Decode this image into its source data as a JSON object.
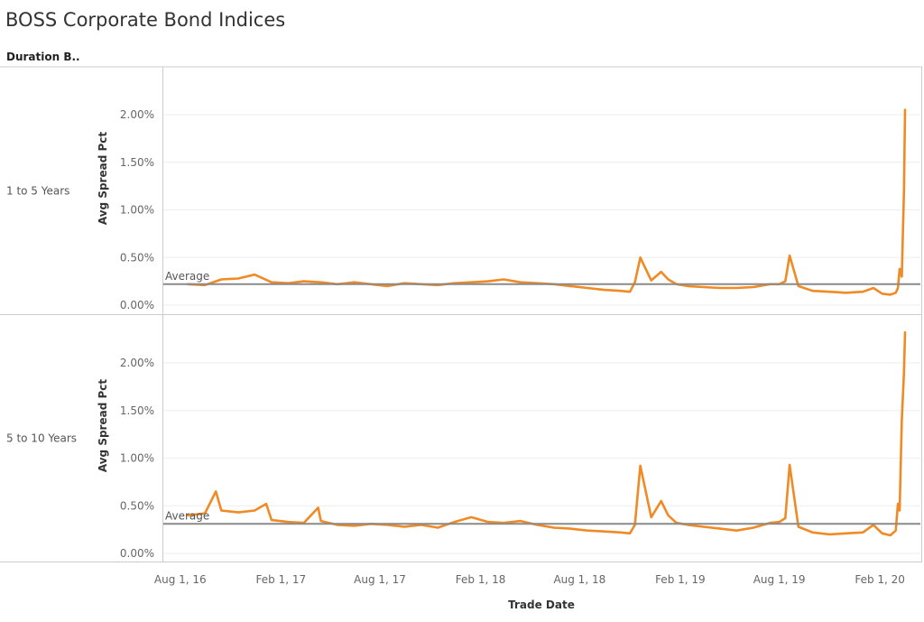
{
  "title": "BOSS Corporate Bond Indices",
  "column_header": "Duration B..",
  "x_axis_label": "Trade Date",
  "y_axis_label": "Avg Spread Pct",
  "average_label": "Average",
  "colors": {
    "line": "#f08a24",
    "average": "#8a8a8a",
    "grid": "#eeeeee",
    "border": "#cccccc"
  },
  "chart_data": [
    {
      "type": "line",
      "row_label": "1 to 5 Years",
      "ylabel": "Avg Spread Pct",
      "xlabel": "Trade Date",
      "ylim": [
        0,
        2.4
      ],
      "yticks": [
        0,
        0.5,
        1.0,
        1.5,
        2.0
      ],
      "ytick_labels": [
        "0.00%",
        "0.50%",
        "1.00%",
        "1.50%",
        "2.00%"
      ],
      "average": 0.22,
      "x": [
        "2016-08-15",
        "2016-09-15",
        "2016-10-15",
        "2016-11-15",
        "2016-12-15",
        "2017-01-15",
        "2017-02-15",
        "2017-03-15",
        "2017-04-15",
        "2017-05-15",
        "2017-06-15",
        "2017-07-15",
        "2017-08-15",
        "2017-09-15",
        "2017-10-15",
        "2017-11-15",
        "2017-12-15",
        "2018-01-15",
        "2018-02-15",
        "2018-03-15",
        "2018-04-15",
        "2018-05-15",
        "2018-06-15",
        "2018-07-15",
        "2018-08-15",
        "2018-09-15",
        "2018-10-15",
        "2018-11-01",
        "2018-11-10",
        "2018-11-20",
        "2018-12-10",
        "2018-12-28",
        "2019-01-10",
        "2019-01-25",
        "2019-02-15",
        "2019-03-15",
        "2019-04-15",
        "2019-05-15",
        "2019-06-15",
        "2019-07-15",
        "2019-08-01",
        "2019-08-12",
        "2019-08-20",
        "2019-09-05",
        "2019-10-01",
        "2019-11-01",
        "2019-12-01",
        "2020-01-01",
        "2020-01-20",
        "2020-02-05",
        "2020-02-20",
        "2020-03-01",
        "2020-03-05",
        "2020-03-08",
        "2020-03-12",
        "2020-03-16",
        "2020-03-18"
      ],
      "y": [
        0.22,
        0.21,
        0.27,
        0.28,
        0.32,
        0.24,
        0.23,
        0.25,
        0.24,
        0.22,
        0.24,
        0.22,
        0.2,
        0.23,
        0.22,
        0.21,
        0.23,
        0.24,
        0.25,
        0.27,
        0.24,
        0.23,
        0.22,
        0.2,
        0.18,
        0.16,
        0.15,
        0.14,
        0.24,
        0.5,
        0.26,
        0.35,
        0.27,
        0.22,
        0.2,
        0.19,
        0.18,
        0.18,
        0.19,
        0.22,
        0.22,
        0.25,
        0.52,
        0.2,
        0.15,
        0.14,
        0.13,
        0.14,
        0.18,
        0.12,
        0.11,
        0.13,
        0.18,
        0.38,
        0.3,
        1.2,
        2.05
      ],
      "x_ticks": [
        "2016-08-01",
        "2017-02-01",
        "2017-08-01",
        "2018-02-01",
        "2018-08-01",
        "2019-02-01",
        "2019-08-01",
        "2020-02-01"
      ],
      "x_tick_labels": [
        "Aug 1, 16",
        "Feb 1, 17",
        "Aug 1, 17",
        "Feb 1, 18",
        "Aug 1, 18",
        "Feb 1, 19",
        "Aug 1, 19",
        "Feb 1, 20"
      ]
    },
    {
      "type": "line",
      "row_label": "5 to 10 Years",
      "ylabel": "Avg Spread Pct",
      "xlabel": "Trade Date",
      "ylim": [
        0,
        2.4
      ],
      "yticks": [
        0,
        0.5,
        1.0,
        1.5,
        2.0
      ],
      "ytick_labels": [
        "0.00%",
        "0.50%",
        "1.00%",
        "1.50%",
        "2.00%"
      ],
      "average": 0.31,
      "x": [
        "2016-08-15",
        "2016-09-15",
        "2016-10-05",
        "2016-10-15",
        "2016-11-15",
        "2016-12-15",
        "2017-01-05",
        "2017-01-15",
        "2017-02-15",
        "2017-03-15",
        "2017-04-10",
        "2017-04-15",
        "2017-05-15",
        "2017-06-15",
        "2017-07-15",
        "2017-08-15",
        "2017-09-15",
        "2017-10-15",
        "2017-11-15",
        "2017-12-15",
        "2018-01-15",
        "2018-02-15",
        "2018-03-15",
        "2018-04-15",
        "2018-05-15",
        "2018-06-15",
        "2018-07-15",
        "2018-08-15",
        "2018-09-15",
        "2018-10-15",
        "2018-11-01",
        "2018-11-10",
        "2018-11-20",
        "2018-12-10",
        "2018-12-28",
        "2019-01-10",
        "2019-01-25",
        "2019-02-15",
        "2019-03-15",
        "2019-04-15",
        "2019-05-15",
        "2019-06-15",
        "2019-07-15",
        "2019-08-01",
        "2019-08-12",
        "2019-08-20",
        "2019-09-05",
        "2019-10-01",
        "2019-11-01",
        "2019-12-01",
        "2020-01-01",
        "2020-01-20",
        "2020-02-05",
        "2020-02-20",
        "2020-03-01",
        "2020-03-05",
        "2020-03-08",
        "2020-03-12",
        "2020-03-16",
        "2020-03-18"
      ],
      "y": [
        0.4,
        0.42,
        0.65,
        0.45,
        0.43,
        0.45,
        0.52,
        0.35,
        0.33,
        0.32,
        0.48,
        0.34,
        0.3,
        0.29,
        0.31,
        0.3,
        0.28,
        0.3,
        0.27,
        0.33,
        0.38,
        0.33,
        0.32,
        0.34,
        0.3,
        0.27,
        0.26,
        0.24,
        0.23,
        0.22,
        0.21,
        0.3,
        0.92,
        0.38,
        0.55,
        0.4,
        0.32,
        0.3,
        0.28,
        0.26,
        0.24,
        0.27,
        0.32,
        0.33,
        0.37,
        0.93,
        0.28,
        0.22,
        0.2,
        0.21,
        0.22,
        0.3,
        0.21,
        0.19,
        0.24,
        0.52,
        0.45,
        1.4,
        1.9,
        2.32
      ],
      "x_ticks": [
        "2016-08-01",
        "2017-02-01",
        "2017-08-01",
        "2018-02-01",
        "2018-08-01",
        "2019-02-01",
        "2019-08-01",
        "2020-02-01"
      ],
      "x_tick_labels": [
        "Aug 1, 16",
        "Feb 1, 17",
        "Aug 1, 17",
        "Feb 1, 18",
        "Aug 1, 18",
        "Feb 1, 19",
        "Aug 1, 19",
        "Feb 1, 20"
      ]
    }
  ]
}
